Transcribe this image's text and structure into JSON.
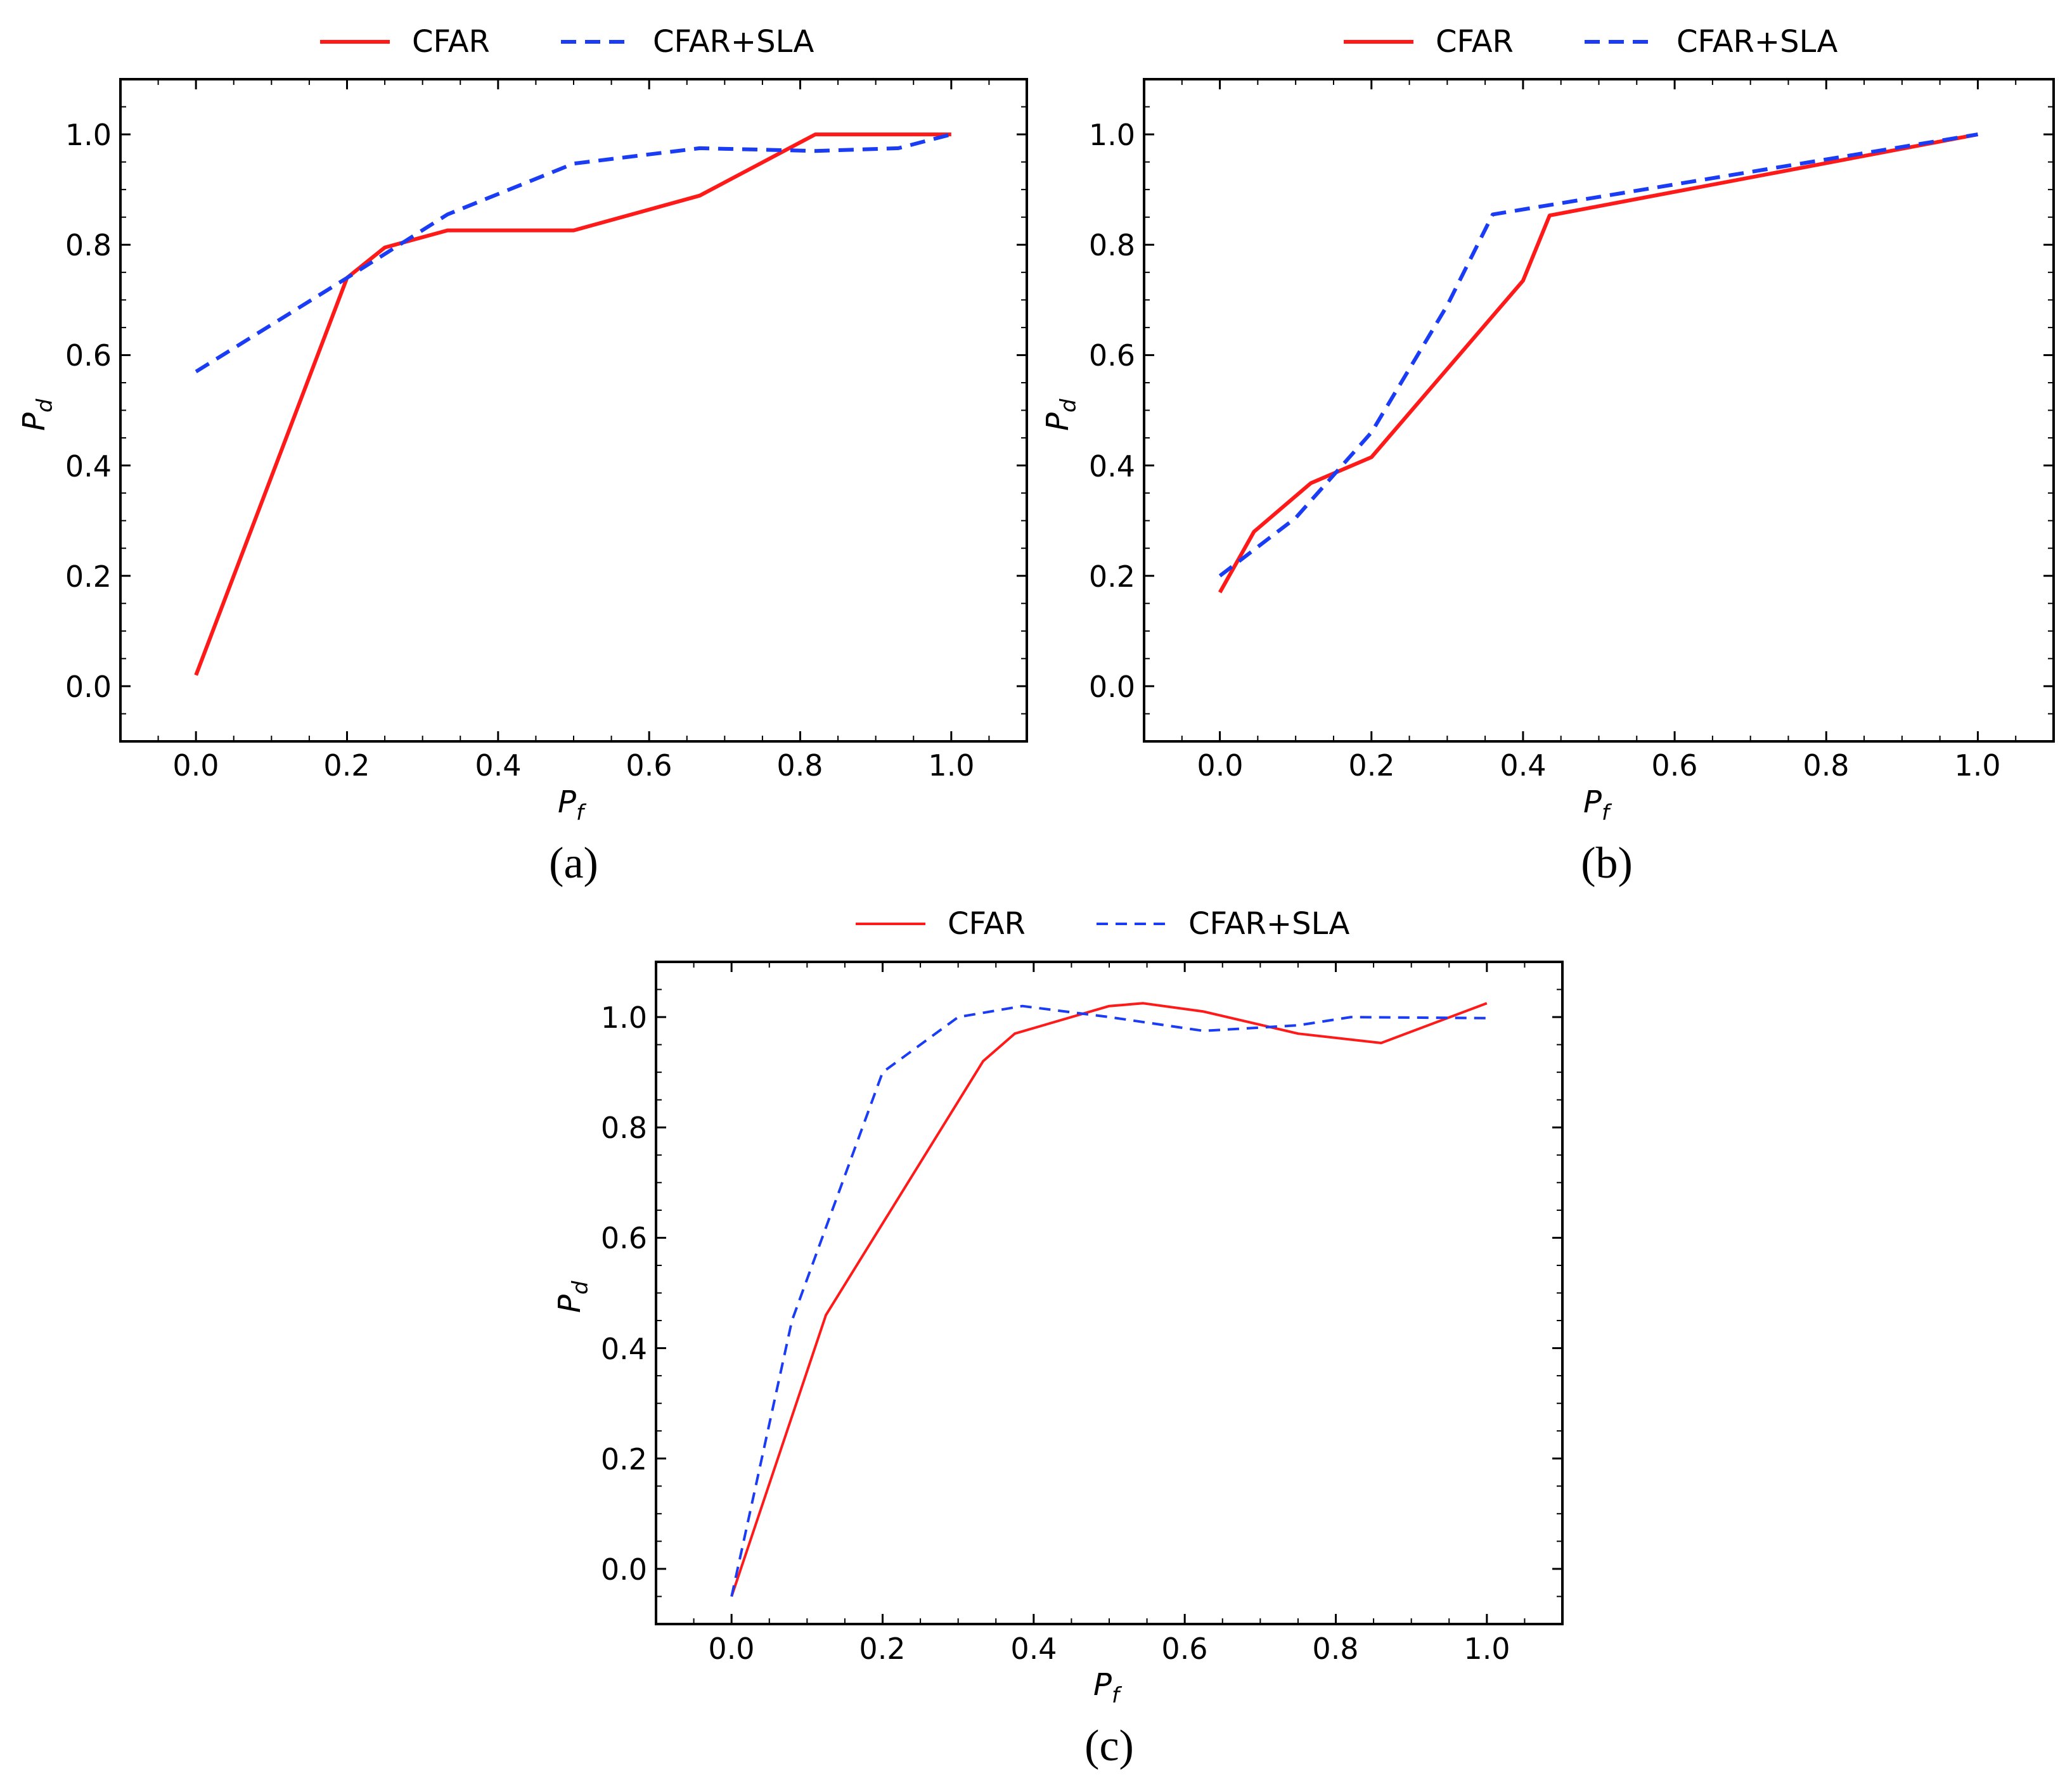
{
  "figure": {
    "type": "multi-panel line chart"
  },
  "chart_data": [
    {
      "id": "a",
      "type": "line",
      "caption": "(a)",
      "xlabel": "P",
      "xlabel_sub": "f",
      "ylabel": "P",
      "ylabel_sub": "d",
      "xlim": [
        -0.1,
        1.1
      ],
      "ylim": [
        -0.1,
        1.1
      ],
      "xticks": [
        0.0,
        0.2,
        0.4,
        0.6,
        0.8,
        1.0
      ],
      "yticks": [
        0.0,
        0.2,
        0.4,
        0.6,
        0.8,
        1.0
      ],
      "xtick_labels": [
        "0.0",
        "0.2",
        "0.4",
        "0.6",
        "0.8",
        "1.0"
      ],
      "ytick_labels": [
        "0.0",
        "0.2",
        "0.4",
        "0.6",
        "0.8",
        "1.0"
      ],
      "legend": {
        "position": "top-center",
        "entries": [
          "CFAR",
          "CFAR+SLA"
        ]
      },
      "series": [
        {
          "name": "CFAR",
          "color": "#ff1a1a",
          "style": "solid",
          "x": [
            0.0,
            0.2,
            0.25,
            0.333,
            0.5,
            0.667,
            0.82,
            1.0
          ],
          "y": [
            0.02,
            0.74,
            0.795,
            0.826,
            0.826,
            0.889,
            1.0,
            1.0
          ]
        },
        {
          "name": "CFAR+SLA",
          "color": "#1a3cf5",
          "style": "dashed",
          "x": [
            0.0,
            0.2,
            0.333,
            0.5,
            0.667,
            0.82,
            0.93,
            1.0
          ],
          "y": [
            0.57,
            0.74,
            0.855,
            0.947,
            0.975,
            0.97,
            0.975,
            1.0
          ]
        }
      ]
    },
    {
      "id": "b",
      "type": "line",
      "caption": "(b)",
      "xlabel": "P",
      "xlabel_sub": "f",
      "ylabel": "P",
      "ylabel_sub": "d",
      "xlim": [
        -0.1,
        1.1
      ],
      "ylim": [
        -0.1,
        1.1
      ],
      "xticks": [
        0.0,
        0.2,
        0.4,
        0.6,
        0.8,
        1.0
      ],
      "yticks": [
        0.0,
        0.2,
        0.4,
        0.6,
        0.8,
        1.0
      ],
      "xtick_labels": [
        "0.0",
        "0.2",
        "0.4",
        "0.6",
        "0.8",
        "1.0"
      ],
      "ytick_labels": [
        "0.0",
        "0.2",
        "0.4",
        "0.6",
        "0.8",
        "1.0"
      ],
      "legend": {
        "position": "top-center",
        "entries": [
          "CFAR",
          "CFAR+SLA"
        ]
      },
      "series": [
        {
          "name": "CFAR",
          "color": "#ff1a1a",
          "style": "solid",
          "x": [
            0.0,
            0.045,
            0.12,
            0.2,
            0.4,
            0.435,
            1.0
          ],
          "y": [
            0.17,
            0.28,
            0.368,
            0.415,
            0.735,
            0.853,
            1.0
          ]
        },
        {
          "name": "CFAR+SLA",
          "color": "#1a3cf5",
          "style": "dashed",
          "x": [
            0.0,
            0.1,
            0.2,
            0.3,
            0.36,
            1.0
          ],
          "y": [
            0.2,
            0.305,
            0.46,
            0.69,
            0.855,
            1.0
          ]
        }
      ]
    },
    {
      "id": "c",
      "type": "line",
      "caption": "(c)",
      "xlabel": "P",
      "xlabel_sub": "f",
      "ylabel": "P",
      "ylabel_sub": "d",
      "xlim": [
        -0.1,
        1.1
      ],
      "ylim": [
        -0.1,
        1.1
      ],
      "xticks": [
        0.0,
        0.2,
        0.4,
        0.6,
        0.8,
        1.0
      ],
      "yticks": [
        0.0,
        0.2,
        0.4,
        0.6,
        0.8,
        1.0
      ],
      "xtick_labels": [
        "0.0",
        "0.2",
        "0.4",
        "0.6",
        "0.8",
        "1.0"
      ],
      "ytick_labels": [
        "0.0",
        "0.2",
        "0.4",
        "0.6",
        "0.8",
        "1.0"
      ],
      "legend": {
        "position": "top-center",
        "entries": [
          "CFAR",
          "CFAR+SLA"
        ]
      },
      "series": [
        {
          "name": "CFAR",
          "color": "#ff1a1a",
          "style": "solid",
          "x": [
            0.0,
            0.125,
            0.333,
            0.375,
            0.5,
            0.545,
            0.625,
            0.75,
            0.86,
            1.0
          ],
          "y": [
            -0.05,
            0.46,
            0.92,
            0.97,
            1.02,
            1.025,
            1.01,
            0.97,
            0.953,
            1.025
          ]
        },
        {
          "name": "CFAR+SLA",
          "color": "#1a3cf5",
          "style": "dashed",
          "x": [
            0.0,
            0.08,
            0.2,
            0.3,
            0.385,
            0.5,
            0.625,
            0.75,
            0.82,
            1.0
          ],
          "y": [
            -0.05,
            0.45,
            0.9,
            1.0,
            1.02,
            1.0,
            0.975,
            0.985,
            1.0,
            0.998
          ]
        }
      ]
    }
  ]
}
